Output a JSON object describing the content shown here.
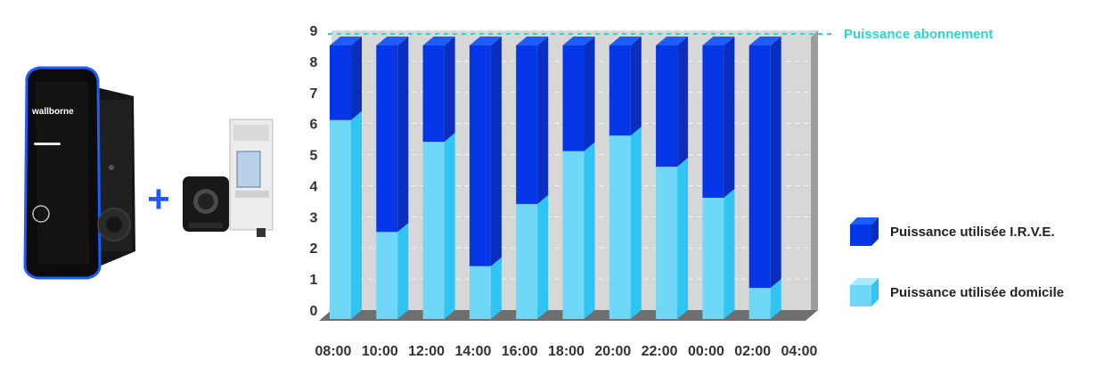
{
  "devices": {
    "charger_brand": "wallborne",
    "plus_symbol": "+"
  },
  "chart_data": {
    "type": "bar",
    "stacked": true,
    "categories": [
      "08:00",
      "10:00",
      "12:00",
      "14:00",
      "16:00",
      "18:00",
      "20:00",
      "22:00",
      "00:00",
      "02:00",
      "04:00"
    ],
    "series": [
      {
        "name": "Puissance utilisée domicile",
        "values": [
          6.4,
          2.8,
          5.7,
          1.7,
          3.7,
          5.4,
          5.9,
          4.9,
          3.9,
          1.0,
          0
        ]
      },
      {
        "name": "Puissance utilisée I.R.V.E.",
        "values": [
          2.4,
          6.0,
          3.1,
          7.1,
          5.1,
          3.4,
          2.9,
          3.9,
          4.9,
          7.8,
          0
        ]
      }
    ],
    "reference_line": {
      "value": 9,
      "label": "Puissance abonnement"
    },
    "ylim": [
      0,
      9
    ],
    "yticks": [
      0,
      1,
      2,
      3,
      4,
      5,
      6,
      7,
      8,
      9
    ],
    "grid": true,
    "legend": "right",
    "colors": {
      "irve_front": "#0537e8",
      "irve_side": "#0a2fc0",
      "irve_top": "#1e5cff",
      "domicile_front": "#6fd8f9",
      "domicile_side": "#2fc4f2",
      "domicile_top": "#a8ebff",
      "wall_back": "#d7d7d7",
      "wall_side": "#9d9d9d",
      "floor": "#6f6f6f",
      "reference": "#2bd6d0"
    }
  }
}
